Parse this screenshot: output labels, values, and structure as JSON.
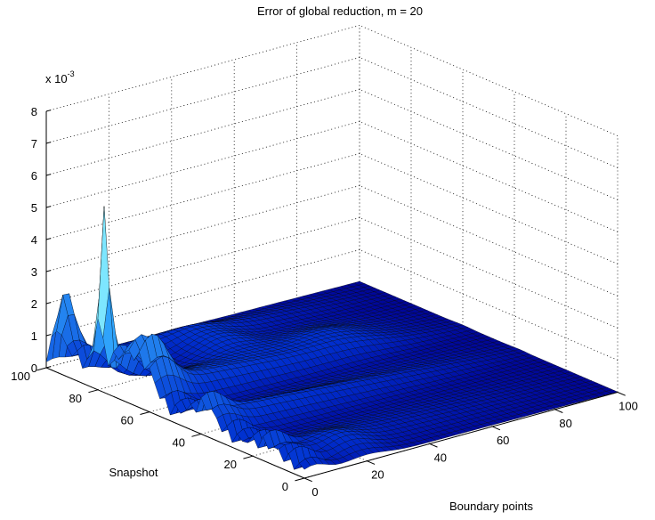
{
  "chart_data": {
    "type": "surface3d",
    "title": "Error of global reduction, m = 20",
    "exponent_label": "x 10",
    "exponent_power": "-3",
    "xlabel": "Boundary points",
    "ylabel": "Snapshot",
    "zlabel": "",
    "xlim": [
      0,
      100
    ],
    "ylim": [
      0,
      100
    ],
    "zlim": [
      0,
      8
    ],
    "x_ticks": [
      "0",
      "20",
      "40",
      "60",
      "80",
      "100"
    ],
    "y_ticks": [
      "0",
      "20",
      "40",
      "60",
      "80",
      "100"
    ],
    "z_ticks": [
      "0",
      "1",
      "2",
      "3",
      "4",
      "5",
      "6",
      "7",
      "8"
    ],
    "grid": true,
    "colormap": [
      "#000090",
      "#0030d0",
      "#1a6ee8",
      "#34b0ff",
      "#80e8ff"
    ],
    "edge_color": "#000000",
    "peak": {
      "x": 2,
      "y": 80,
      "z": 5.7
    },
    "secondary_peak": {
      "x": 3,
      "y": 96,
      "z": 3.1
    }
  }
}
